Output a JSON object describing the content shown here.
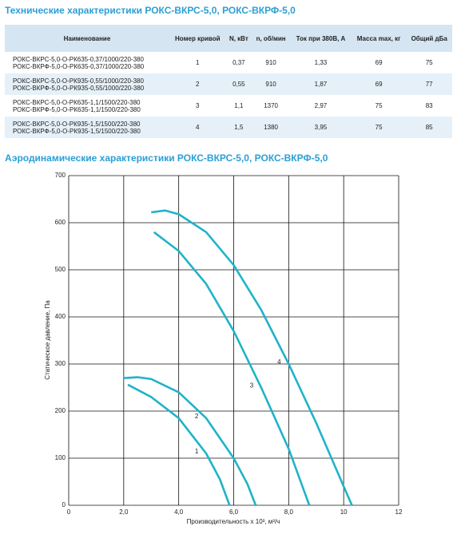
{
  "header": {
    "title": "Технические характеристики РОКС-ВКРС-5,0, РОКС-ВКРФ-5,0"
  },
  "table": {
    "headers": [
      "Наименование",
      "Номер кривой",
      "N, кВт",
      "n, об/мин",
      "Ток при 380В, А",
      "Масса max, кг",
      "Общий дБа"
    ],
    "rows": [
      [
        [
          "РОКС-ВКРС-5,0-О-РК635-0,37/1000/220-380",
          "РОКС-ВКРФ-5,0-О-РК635-0,37/1000/220-380"
        ],
        "1",
        "0,37",
        "910",
        "1,33",
        "69",
        "75"
      ],
      [
        [
          "РОКС-ВКРС-5,0-О-РК935-0,55/1000/220-380",
          "РОКС-ВКРФ-5,0-О-РК935-0,55/1000/220-380"
        ],
        "2",
        "0,55",
        "910",
        "1,87",
        "69",
        "77"
      ],
      [
        [
          "РОКС-ВКРС-5,0-О-РК635-1,1/1500/220-380",
          "РОКС-ВКРФ-5,0-О-РК635-1,1/1500/220-380"
        ],
        "3",
        "1,1",
        "1370",
        "2,97",
        "75",
        "83"
      ],
      [
        [
          "РОКС-ВКРС-5,0-О-РК935-1,5/1500/220-380",
          "РОКС-ВКРФ-5,0-О-РК935-1,5/1500/220-380"
        ],
        "4",
        "1,5",
        "1380",
        "3,95",
        "75",
        "85"
      ]
    ]
  },
  "chart_data": {
    "type": "line",
    "title": "Аэродинамические характеристики РОКС-ВКРС-5,0, РОКС-ВКРФ-5,0",
    "xlabel": "Производительность х 10³, м³/ч",
    "ylabel": "Статическое давление, Па",
    "xlim": [
      0,
      12
    ],
    "xticks": [
      0,
      {
        "value": 2,
        "label": "2,0"
      },
      {
        "value": 4,
        "label": "4,0"
      },
      {
        "value": 6,
        "label": "6,0"
      },
      {
        "value": 8,
        "label": "8,0"
      },
      10,
      12
    ],
    "ylim": [
      0,
      700
    ],
    "yticks": [
      0,
      100,
      200,
      300,
      400,
      500,
      600,
      700
    ],
    "grid": true,
    "series": [
      {
        "name": "1",
        "color": "#1fb3c9",
        "x": [
          2.15,
          3,
          4,
          5,
          5.5,
          5.85
        ],
        "values": [
          256,
          230,
          185,
          110,
          55,
          0
        ]
      },
      {
        "name": "2",
        "color": "#1fb3c9",
        "x": [
          2.0,
          2.5,
          3,
          4,
          5,
          6,
          6.5,
          6.8
        ],
        "values": [
          270,
          272,
          268,
          240,
          185,
          100,
          45,
          0
        ]
      },
      {
        "name": "3",
        "color": "#1fb3c9",
        "x": [
          3.1,
          4,
          5,
          6,
          7,
          8,
          8.75
        ],
        "values": [
          580,
          540,
          470,
          370,
          250,
          120,
          0
        ]
      },
      {
        "name": "4",
        "color": "#1fb3c9",
        "x": [
          3,
          3.5,
          4,
          5,
          6,
          7,
          8,
          9,
          10,
          10.3
        ],
        "values": [
          622,
          626,
          618,
          580,
          510,
          415,
          300,
          175,
          40,
          0
        ]
      }
    ]
  }
}
